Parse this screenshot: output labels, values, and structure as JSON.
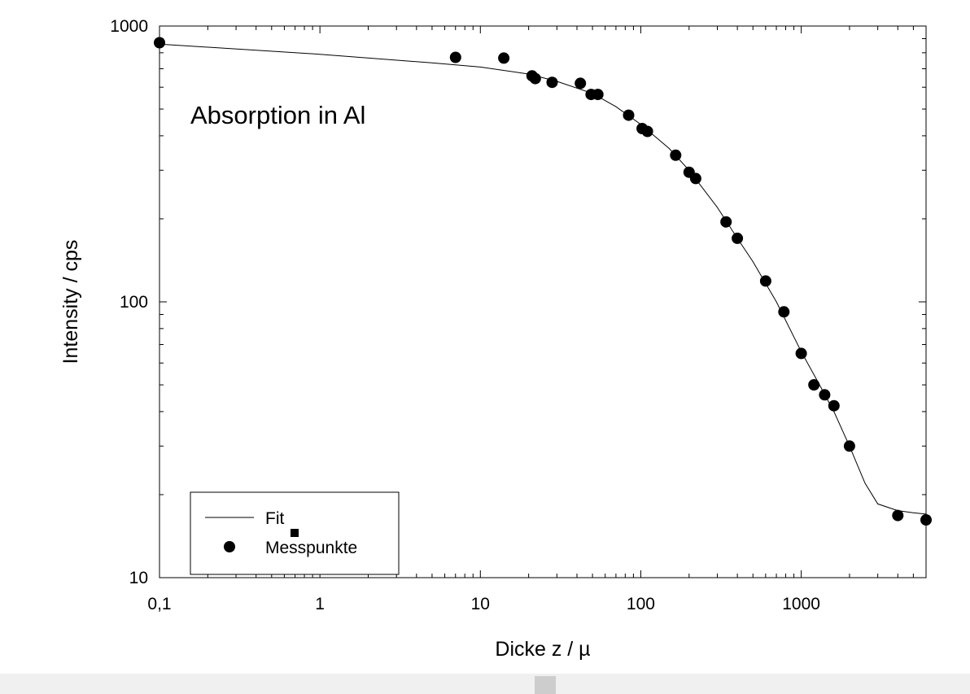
{
  "chart_data": {
    "type": "scatter",
    "title": "",
    "annotation": "Absorption in Al",
    "xlabel": "Dicke z / µ",
    "ylabel": "Intensity / cps",
    "xscale": "log",
    "yscale": "log",
    "xlim": [
      0.1,
      6000
    ],
    "ylim": [
      10,
      1000
    ],
    "xticks": [
      {
        "value": 0.1,
        "label": "0,1"
      },
      {
        "value": 1,
        "label": "1"
      },
      {
        "value": 10,
        "label": "10"
      },
      {
        "value": 100,
        "label": "100"
      },
      {
        "value": 1000,
        "label": "1000"
      }
    ],
    "yticks": [
      {
        "value": 10,
        "label": "10"
      },
      {
        "value": 100,
        "label": "100"
      },
      {
        "value": 1000,
        "label": "1000"
      }
    ],
    "grid": false,
    "legend_position": "bottom-left",
    "series": [
      {
        "name": "Fit",
        "kind": "line",
        "color": "#000000",
        "x": [
          0.1,
          1,
          5,
          10,
          20,
          30,
          50,
          70,
          100,
          150,
          200,
          300,
          400,
          500,
          700,
          1000,
          1300,
          1600,
          2000,
          2500,
          3000,
          4000,
          5000,
          6000
        ],
        "y": [
          860,
          790,
          735,
          710,
          670,
          630,
          570,
          510,
          440,
          360,
          300,
          220,
          170,
          140,
          100,
          66,
          50,
          40,
          30,
          22,
          18.5,
          17.5,
          17.2,
          17
        ]
      },
      {
        "name": "Messpunkte",
        "kind": "scatter",
        "color": "#000000",
        "x": [
          0.1,
          7,
          14,
          21,
          22,
          28,
          42,
          49,
          54,
          84,
          102,
          110,
          165,
          200,
          220,
          340,
          400,
          600,
          780,
          1000,
          1200,
          1400,
          1600,
          2000,
          4000,
          6000
        ],
        "y": [
          870,
          770,
          765,
          660,
          645,
          625,
          620,
          565,
          565,
          475,
          425,
          415,
          340,
          295,
          280,
          195,
          170,
          119,
          92,
          65,
          50,
          46,
          42,
          30,
          16.8,
          16.2
        ]
      }
    ]
  }
}
